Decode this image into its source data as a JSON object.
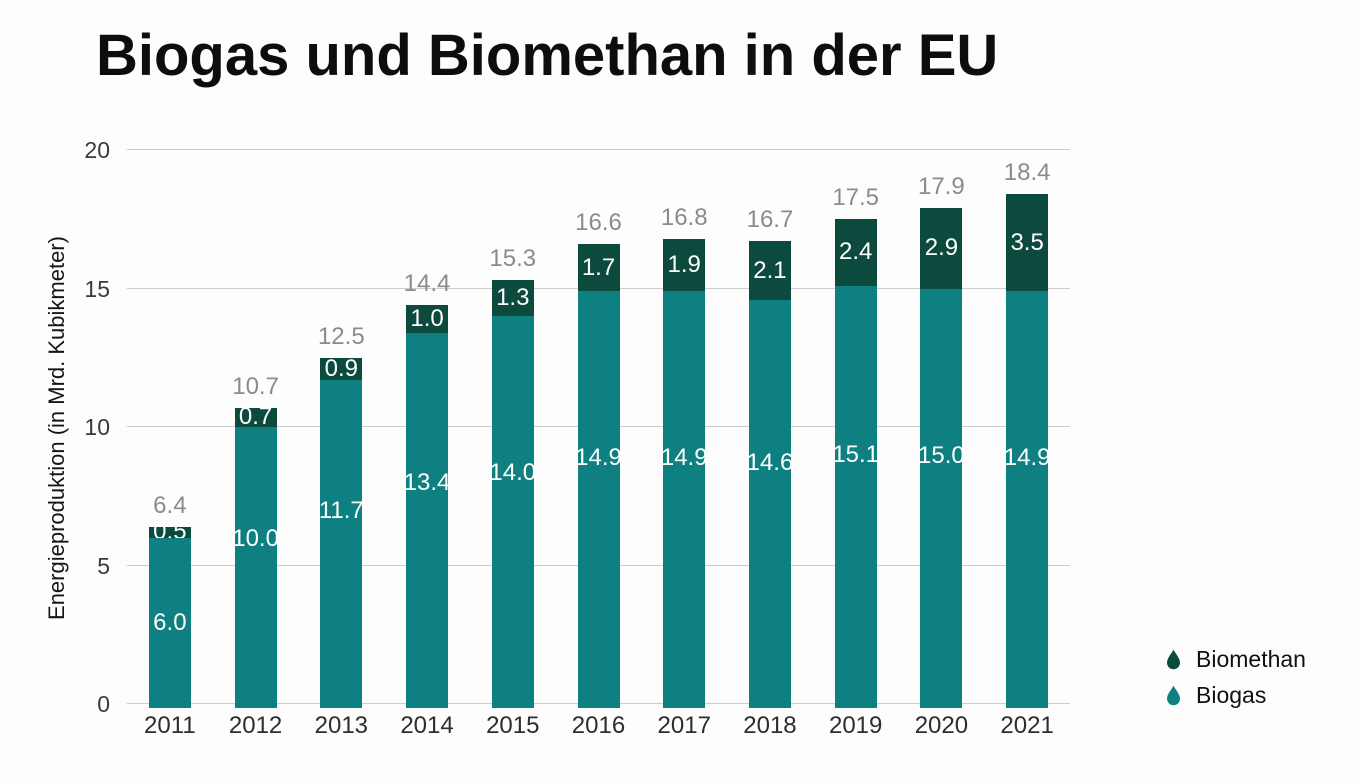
{
  "title": "Biogas und Biomethan in der EU",
  "chart_data": {
    "type": "bar",
    "stacked": true,
    "title": "Biogas und Biomethan in der EU",
    "xlabel": "",
    "ylabel": "Energieproduktion (in Mrd. Kubikmeter)",
    "categories": [
      "2011",
      "2012",
      "2013",
      "2014",
      "2015",
      "2016",
      "2017",
      "2018",
      "2019",
      "2020",
      "2021"
    ],
    "series": [
      {
        "name": "Biomethan",
        "color": "#0c4a3e",
        "values": [
          0.5,
          0.7,
          0.9,
          1.0,
          1.3,
          1.7,
          1.9,
          2.1,
          2.4,
          2.9,
          3.5
        ]
      },
      {
        "name": "Biogas",
        "color": "#0e8081",
        "values": [
          6.0,
          10.0,
          11.7,
          13.4,
          14.0,
          14.9,
          14.9,
          14.6,
          15.1,
          15.0,
          14.9
        ]
      }
    ],
    "totals": [
      6.4,
      10.7,
      12.5,
      14.4,
      15.3,
      16.6,
      16.8,
      16.7,
      17.5,
      17.9,
      18.4
    ],
    "yticks": [
      0,
      5,
      10,
      15,
      20
    ],
    "ylim": [
      0,
      20
    ],
    "grid": true,
    "legend_position": "bottom-right",
    "value_label_color_inside": "#ffffff",
    "total_label_color": "#8b8b8b",
    "gridline_color": "#cccccc"
  },
  "legend": {
    "icon": "droplet-icon",
    "items": [
      {
        "label": "Biomethan",
        "color": "#0c4a3e"
      },
      {
        "label": "Biogas",
        "color": "#0e8081"
      }
    ]
  }
}
